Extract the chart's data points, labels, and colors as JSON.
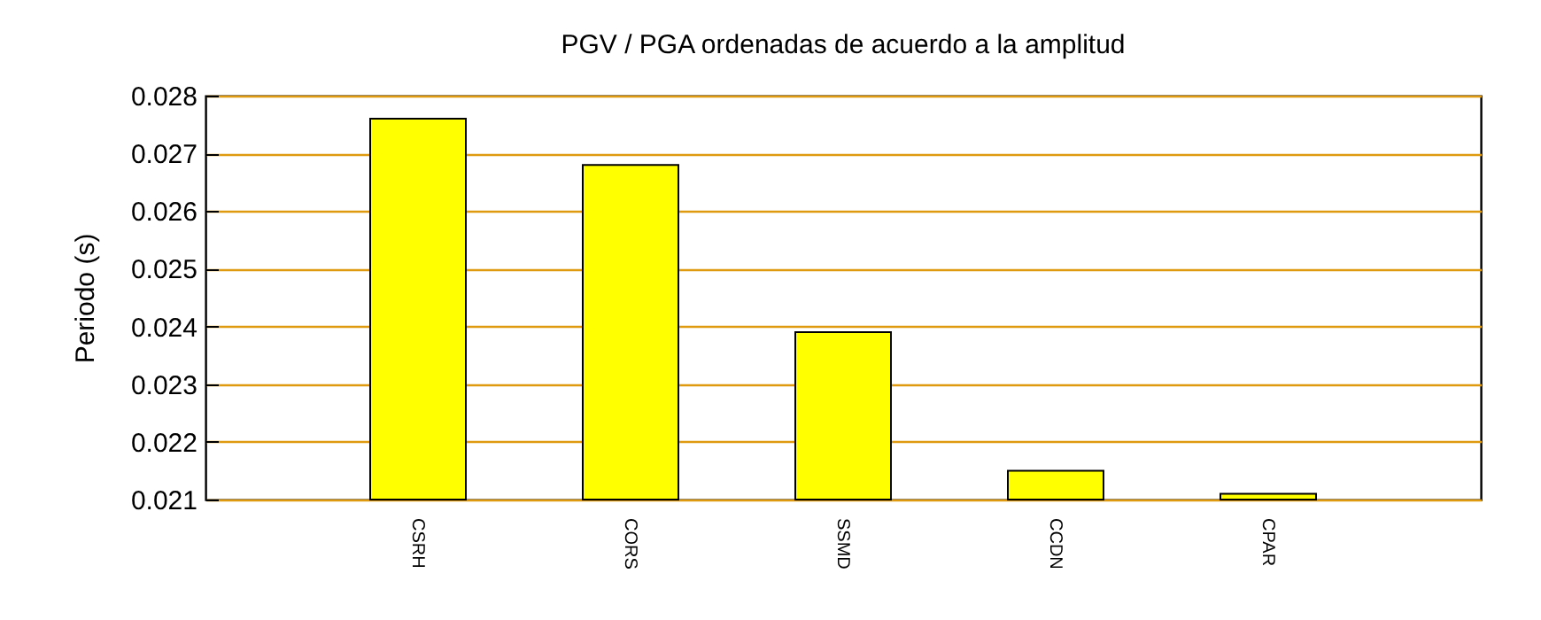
{
  "chart_data": {
    "type": "bar",
    "title": "PGV / PGA ordenadas de acuerdo a la amplitud",
    "ylabel": "Periodo (s)",
    "categories": [
      "CSRH",
      "CORS",
      "SSMD",
      "CCDN",
      "CPAR"
    ],
    "values": [
      0.0276,
      0.0268,
      0.0239,
      0.0215,
      0.0211
    ],
    "color": "#ffff00",
    "ylim": [
      0.021,
      0.028
    ],
    "yticks": [
      0.021,
      0.022,
      0.023,
      0.024,
      0.025,
      0.026,
      0.027,
      0.028
    ],
    "grid": "y"
  }
}
